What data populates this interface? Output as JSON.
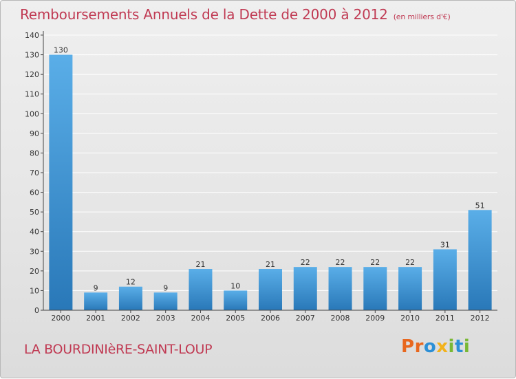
{
  "colors": {
    "title": "#c03a53",
    "bar_top": "#5aaee8",
    "bar_bottom": "#2978b8",
    "axis": "#444444",
    "grid": "#ffffff"
  },
  "logo": {
    "letters": [
      {
        "char": "P",
        "color": "#e8671e"
      },
      {
        "char": "r",
        "color": "#e8671e"
      },
      {
        "char": "o",
        "color": "#2b8fd6"
      },
      {
        "char": "x",
        "color": "#f2b21b"
      },
      {
        "char": "i",
        "color": "#79b834"
      },
      {
        "char": "t",
        "color": "#2b8fd6"
      },
      {
        "char": "i",
        "color": "#79b834"
      }
    ]
  },
  "footer": {
    "commune": "LA BOURDINIèRE-SAINT-LOUP"
  },
  "chart_data": {
    "type": "bar",
    "title": "Remboursements Annuels de la Dette de 2000 à 2012",
    "unit_label": "(en milliers d'€)",
    "xlabel": "",
    "ylabel": "",
    "categories": [
      "2000",
      "2001",
      "2002",
      "2003",
      "2004",
      "2005",
      "2006",
      "2007",
      "2008",
      "2009",
      "2010",
      "2011",
      "2012"
    ],
    "values": [
      130,
      9,
      12,
      9,
      21,
      10,
      21,
      22,
      22,
      22,
      22,
      31,
      51
    ],
    "ylim": [
      0,
      140
    ],
    "yticks": [
      0,
      10,
      20,
      30,
      40,
      50,
      60,
      70,
      80,
      90,
      100,
      110,
      120,
      130,
      140
    ],
    "grid": true,
    "legend": "none"
  }
}
